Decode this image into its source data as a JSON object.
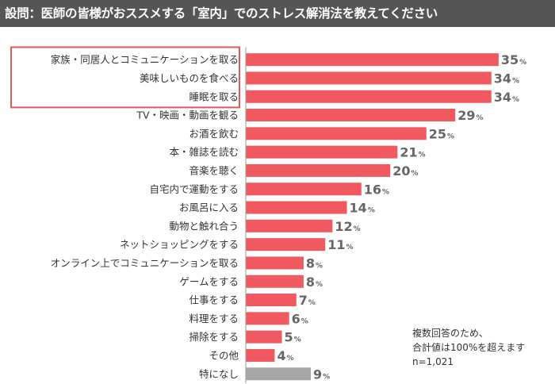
{
  "chart_data": {
    "type": "bar",
    "orientation": "horizontal",
    "title": "設問：医師の皆様がおススメする「室内」でのストレス解消法を教えてください",
    "categories": [
      "家族・同居人とコミュニケーションを取る",
      "美味しいものを食べる",
      "睡眠を取る",
      "TV・映画・動画を観る",
      "お酒を飲む",
      "本・雑誌を読む",
      "音楽を聴く",
      "自宅内で運動をする",
      "お風呂に入る",
      "動物と触れ合う",
      "ネットショッピングをする",
      "オンライン上でコミュニケーションを取る",
      "ゲームをする",
      "仕事をする",
      "料理をする",
      "掃除をする",
      "その他",
      "特になし"
    ],
    "values": [
      35,
      34,
      34,
      29,
      25,
      21,
      20,
      16,
      14,
      12,
      11,
      8,
      8,
      7,
      6,
      5,
      4,
      9
    ],
    "unit": "%",
    "highlighted_count": 3,
    "xlim": [
      0,
      36
    ],
    "grid": false,
    "legend": "none"
  },
  "colors": {
    "bar": "#F0595F",
    "bar_other": "#A6A6A6",
    "highlight_box": "#E0595A",
    "axis": "#999999",
    "title_bg": "#555555"
  },
  "note": {
    "line1": "複数回答のため、",
    "line2": "合計値は100%を超えます",
    "line3": "n=1,021"
  }
}
